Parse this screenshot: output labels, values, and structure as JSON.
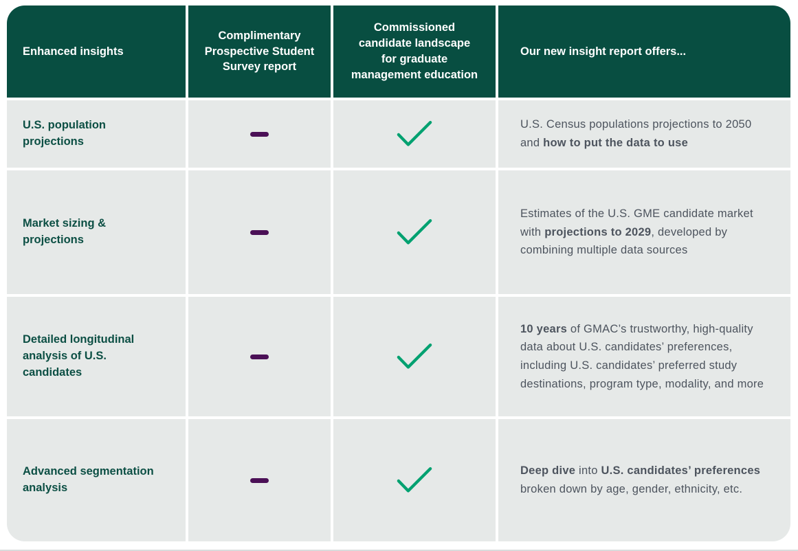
{
  "theme": {
    "header_bg": "#084e41",
    "row_bg": "#e6e9e8",
    "feature_text": "#0c4f44",
    "body_text": "#4d545e",
    "check_color": "#00a170",
    "dash_color": "#4b1056",
    "edge_line": "#d9dcdc"
  },
  "icons": {
    "included": "check-icon",
    "not_included": "dash-icon"
  },
  "table": {
    "columns": [
      {
        "label": "Enhanced insights"
      },
      {
        "label": "Complimentary Prospective Student Survey report"
      },
      {
        "label": "Commissioned candidate landscape for graduate management education"
      },
      {
        "label": "Our new insight report offers..."
      }
    ],
    "rows": [
      {
        "feature": "U.S. population projections",
        "survey_report": "not-included",
        "insight_report": "included",
        "description": [
          {
            "t": "U.S. Census populations projections to 2050 and ",
            "b": false
          },
          {
            "t": "how to put the data to use",
            "b": true
          }
        ]
      },
      {
        "feature": "Market sizing & projections",
        "survey_report": "not-included",
        "insight_report": "included",
        "description": [
          {
            "t": "Estimates of the U.S. GME candidate market with ",
            "b": false
          },
          {
            "t": "projections to 2029",
            "b": true
          },
          {
            "t": ", developed by combining multiple data sources",
            "b": false
          }
        ]
      },
      {
        "feature": "Detailed longitudinal analysis of U.S. candidates",
        "survey_report": "not-included",
        "insight_report": "included",
        "description": [
          {
            "t": "10 years",
            "b": true
          },
          {
            "t": " of GMAC’s trustworthy, high-quality data about U.S. candidates’ preferences, including U.S. candidates’ preferred study destinations, program type, modality, and more",
            "b": false
          }
        ]
      },
      {
        "feature": "Advanced segmentation analysis",
        "survey_report": "not-included",
        "insight_report": "included",
        "description": [
          {
            "t": "Deep dive",
            "b": true
          },
          {
            "t": " into ",
            "b": false
          },
          {
            "t": "U.S. candidates’ preferences",
            "b": true
          },
          {
            "t": " broken down by age, gender, ethnicity, etc.",
            "b": false
          }
        ]
      }
    ]
  }
}
